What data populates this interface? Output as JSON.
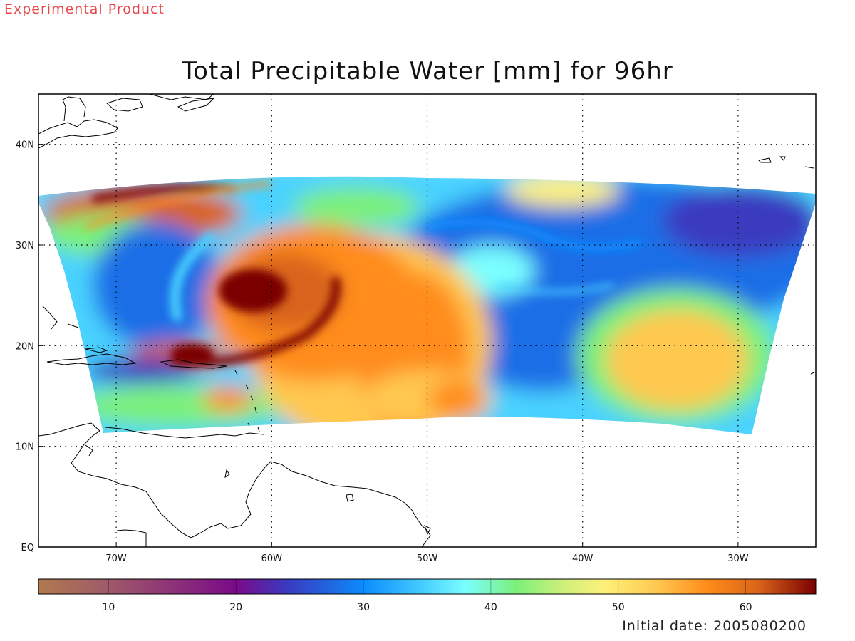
{
  "header_note": "Experimental Product",
  "title": "Total Precipitable Water [mm] for 96hr",
  "footer_date": "Initial date: 2005080200",
  "colors": {
    "coast": "#000000",
    "grid": "#000000",
    "background": "#ffffff"
  },
  "map": {
    "lon_range": [
      -75,
      -25
    ],
    "lat_range": [
      0,
      45
    ],
    "lon_ticks": [
      {
        "value": -70,
        "label": "70W"
      },
      {
        "value": -60,
        "label": "60W"
      },
      {
        "value": -50,
        "label": "50W"
      },
      {
        "value": -40,
        "label": "40W"
      },
      {
        "value": -30,
        "label": "30W"
      }
    ],
    "lat_ticks": [
      {
        "value": 0,
        "label": "EQ"
      },
      {
        "value": 10,
        "label": "10N"
      },
      {
        "value": 20,
        "label": "20N"
      },
      {
        "value": 30,
        "label": "30N"
      },
      {
        "value": 40,
        "label": "40N"
      }
    ],
    "grid": "dotted",
    "field_name": "Total Precipitable Water",
    "units": "mm",
    "forecast_hour": 96,
    "storm_center_lon": -61,
    "storm_center_lat": 25.5
  },
  "colorbar": {
    "min": 4.5,
    "max": 65.5,
    "tick_values": [
      10,
      20,
      30,
      40,
      50,
      60
    ],
    "tick_labels": [
      "10",
      "20",
      "30",
      "40",
      "50",
      "60"
    ],
    "stops": [
      {
        "v": 4.5,
        "c": "#b07a4e"
      },
      {
        "v": 10,
        "c": "#9e5a6a"
      },
      {
        "v": 16,
        "c": "#8a2a7a"
      },
      {
        "v": 20,
        "c": "#7a0a8a"
      },
      {
        "v": 24,
        "c": "#3a3ac0"
      },
      {
        "v": 28,
        "c": "#1c6ee6"
      },
      {
        "v": 30,
        "c": "#0a8cff"
      },
      {
        "v": 35,
        "c": "#4ad2ff"
      },
      {
        "v": 38,
        "c": "#7affff"
      },
      {
        "v": 42,
        "c": "#7cf07a"
      },
      {
        "v": 46,
        "c": "#d4f07a"
      },
      {
        "v": 49,
        "c": "#fff07a"
      },
      {
        "v": 53,
        "c": "#ffc850"
      },
      {
        "v": 57,
        "c": "#ff8c1a"
      },
      {
        "v": 61,
        "c": "#d8641a"
      },
      {
        "v": 65.5,
        "c": "#7a0000"
      }
    ]
  }
}
